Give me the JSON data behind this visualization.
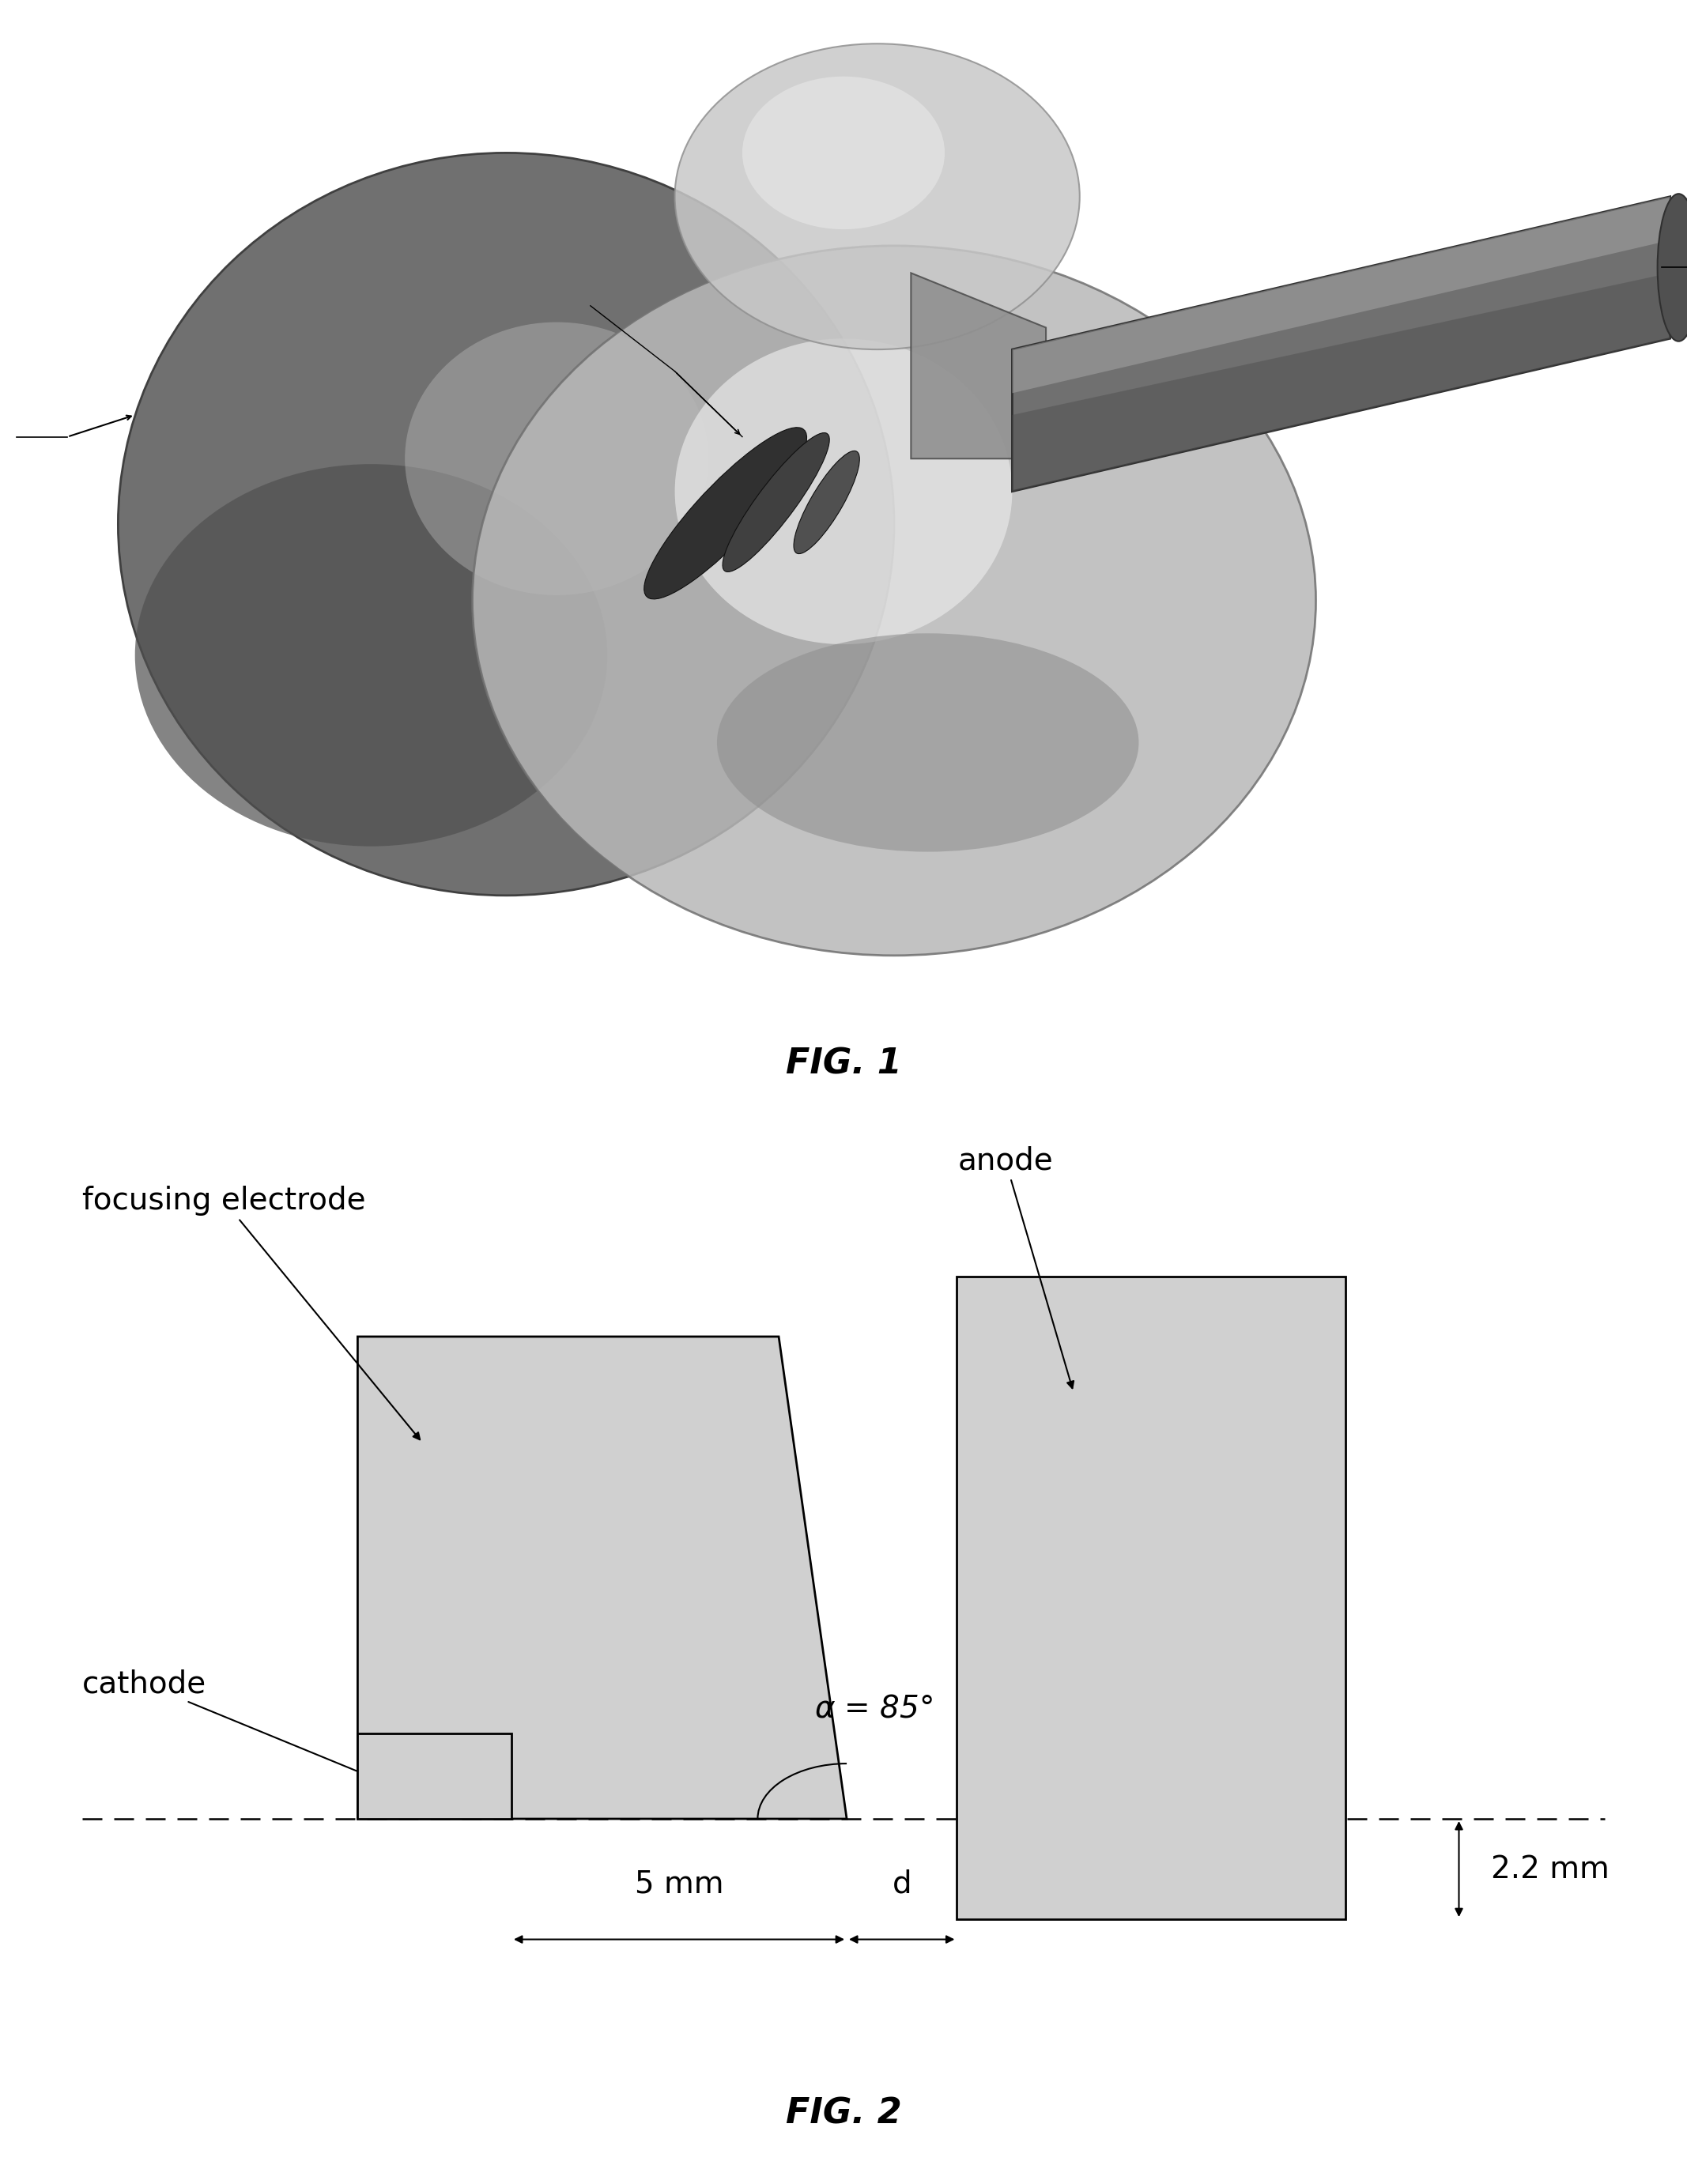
{
  "fig1_caption": "FIG. 1",
  "fig2_caption": "FIG. 2",
  "background_color": "#ffffff",
  "caption_fontsize": 32,
  "label_fontsize": 28,
  "annotation_fontsize": 28,
  "alpha_text": "α = 85°",
  "dim_5mm": "5 mm",
  "dim_d": "d",
  "dim_22mm": "2.2 mm",
  "label_anode": "anode",
  "label_focusing": "focusing electrode",
  "label_cathode": "cathode",
  "gray_fill": "#d0d0d0",
  "dark_gray": "#888888",
  "mid_gray": "#aaaaaa",
  "light_gray": "#e0e0e0"
}
